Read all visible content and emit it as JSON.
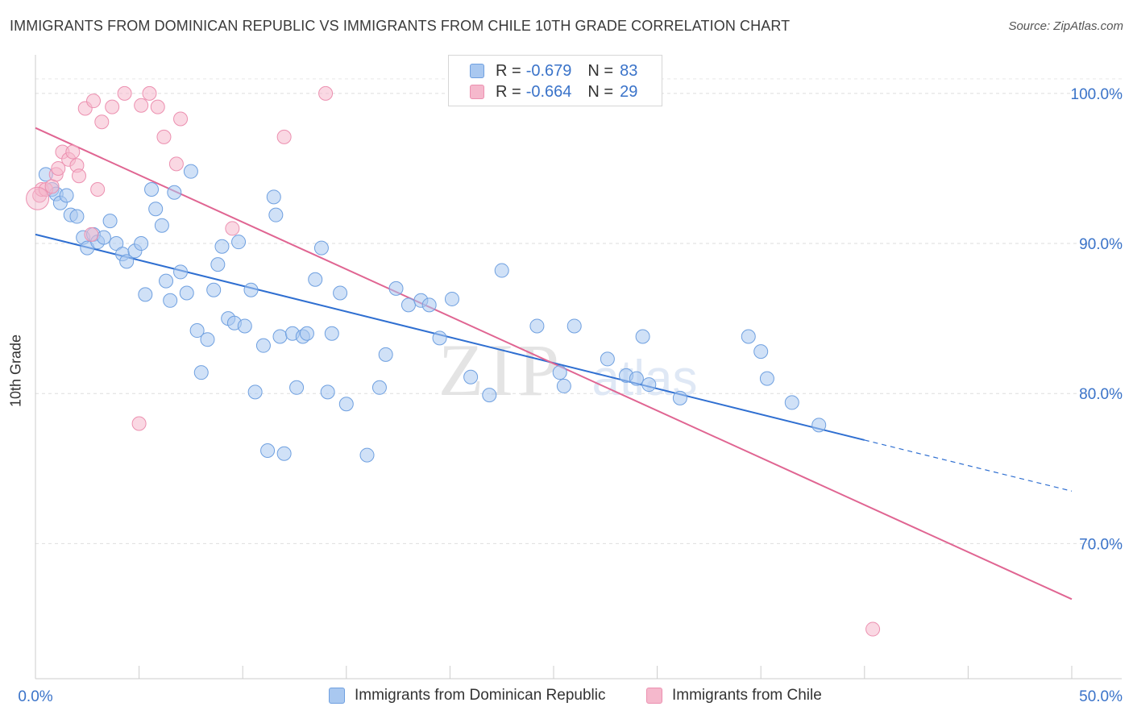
{
  "header": {
    "title": "IMMIGRANTS FROM DOMINICAN REPUBLIC VS IMMIGRANTS FROM CHILE 10TH GRADE CORRELATION CHART",
    "source": "Source: ZipAtlas.com"
  },
  "legend": {
    "r_label": "R =",
    "n_label": "N =",
    "rows": [
      {
        "r": "-0.679",
        "n": "83",
        "color": "#a9c8f0"
      },
      {
        "r": "-0.664",
        "n": "29",
        "color": "#f5b8cc"
      }
    ]
  },
  "watermark": {
    "zip": "ZIP",
    "atlas": "atlas"
  },
  "chart_data": {
    "type": "scatter",
    "ylabel": "10th Grade",
    "xlim": [
      0,
      50
    ],
    "ylim": [
      61,
      103
    ],
    "x_tick_labels": [
      "0.0%",
      "50.0%"
    ],
    "y_ticks": [
      70,
      80,
      90,
      100
    ],
    "y_tick_labels": [
      "70.0%",
      "80.0%",
      "90.0%",
      "100.0%"
    ],
    "grid": "horizontal dashed",
    "series": [
      {
        "name": "Immigrants from Dominican Republic",
        "color": "#6fa0e0",
        "fill": "#a9c8f0",
        "trend": {
          "x0": 0,
          "y0": 90.6,
          "x1": 40,
          "y1": 76.9,
          "dash_to_x": 50,
          "dash_to_y": 73.5,
          "color": "#2f6fd1"
        },
        "points": [
          [
            0.5,
            94.6
          ],
          [
            0.8,
            93.6
          ],
          [
            1.0,
            93.3
          ],
          [
            1.2,
            92.7
          ],
          [
            1.5,
            93.2
          ],
          [
            1.7,
            91.9
          ],
          [
            2.0,
            91.8
          ],
          [
            2.3,
            90.4
          ],
          [
            2.5,
            89.7
          ],
          [
            2.8,
            90.6
          ],
          [
            3.0,
            90.1
          ],
          [
            3.3,
            90.4
          ],
          [
            3.6,
            91.5
          ],
          [
            3.9,
            90.0
          ],
          [
            4.2,
            89.3
          ],
          [
            4.4,
            88.8
          ],
          [
            4.8,
            89.5
          ],
          [
            5.1,
            90.0
          ],
          [
            5.3,
            86.6
          ],
          [
            5.6,
            93.6
          ],
          [
            5.8,
            92.3
          ],
          [
            6.1,
            91.2
          ],
          [
            6.3,
            87.5
          ],
          [
            6.5,
            86.2
          ],
          [
            6.7,
            93.4
          ],
          [
            7.0,
            88.1
          ],
          [
            7.3,
            86.7
          ],
          [
            7.5,
            94.8
          ],
          [
            7.8,
            84.2
          ],
          [
            8.0,
            81.4
          ],
          [
            8.3,
            83.6
          ],
          [
            8.6,
            86.9
          ],
          [
            8.8,
            88.6
          ],
          [
            9.0,
            89.8
          ],
          [
            9.3,
            85.0
          ],
          [
            9.6,
            84.7
          ],
          [
            9.8,
            90.1
          ],
          [
            10.1,
            84.5
          ],
          [
            10.4,
            86.9
          ],
          [
            10.6,
            80.1
          ],
          [
            11.0,
            83.2
          ],
          [
            11.2,
            76.2
          ],
          [
            11.5,
            93.1
          ],
          [
            11.6,
            91.9
          ],
          [
            11.8,
            83.8
          ],
          [
            12.0,
            76.0
          ],
          [
            12.4,
            84.0
          ],
          [
            12.6,
            80.4
          ],
          [
            12.9,
            83.8
          ],
          [
            13.1,
            84.0
          ],
          [
            13.5,
            87.6
          ],
          [
            13.8,
            89.7
          ],
          [
            14.1,
            80.1
          ],
          [
            14.3,
            84.0
          ],
          [
            14.7,
            86.7
          ],
          [
            15.0,
            79.3
          ],
          [
            16.0,
            75.9
          ],
          [
            16.6,
            80.4
          ],
          [
            16.9,
            82.6
          ],
          [
            17.4,
            87.0
          ],
          [
            18.0,
            85.9
          ],
          [
            18.6,
            86.2
          ],
          [
            19.0,
            85.9
          ],
          [
            19.5,
            83.7
          ],
          [
            20.1,
            86.3
          ],
          [
            21.0,
            81.1
          ],
          [
            21.9,
            79.9
          ],
          [
            22.5,
            88.2
          ],
          [
            24.2,
            84.5
          ],
          [
            25.3,
            81.4
          ],
          [
            25.5,
            80.5
          ],
          [
            26.0,
            84.5
          ],
          [
            27.6,
            82.3
          ],
          [
            28.5,
            81.2
          ],
          [
            29.0,
            81.0
          ],
          [
            29.3,
            83.8
          ],
          [
            29.6,
            80.6
          ],
          [
            31.1,
            79.7
          ],
          [
            34.4,
            83.8
          ],
          [
            35.0,
            82.8
          ],
          [
            35.3,
            81.0
          ],
          [
            36.5,
            79.4
          ],
          [
            37.8,
            77.9
          ]
        ]
      },
      {
        "name": "Immigrants from Chile",
        "color": "#ec90b0",
        "fill": "#f5b8cc",
        "trend": {
          "x0": 0,
          "y0": 97.7,
          "x1": 50,
          "y1": 66.3,
          "color": "#e06592"
        },
        "points": [
          [
            0.2,
            93.2
          ],
          [
            0.3,
            93.6
          ],
          [
            0.5,
            93.6
          ],
          [
            0.8,
            93.8
          ],
          [
            1.0,
            94.6
          ],
          [
            1.1,
            95.0
          ],
          [
            1.3,
            96.1
          ],
          [
            1.6,
            95.6
          ],
          [
            1.8,
            96.1
          ],
          [
            2.0,
            95.2
          ],
          [
            2.1,
            94.5
          ],
          [
            2.4,
            99.0
          ],
          [
            2.7,
            90.6
          ],
          [
            2.8,
            99.5
          ],
          [
            3.0,
            93.6
          ],
          [
            3.2,
            98.1
          ],
          [
            3.7,
            99.1
          ],
          [
            4.3,
            100.0
          ],
          [
            5.0,
            78.0
          ],
          [
            5.1,
            99.2
          ],
          [
            5.5,
            100.0
          ],
          [
            5.9,
            99.1
          ],
          [
            6.2,
            97.1
          ],
          [
            6.8,
            95.3
          ],
          [
            7.0,
            98.3
          ],
          [
            9.5,
            91.0
          ],
          [
            12.0,
            97.1
          ],
          [
            14.0,
            100.0
          ],
          [
            40.4,
            64.3
          ]
        ]
      }
    ]
  }
}
